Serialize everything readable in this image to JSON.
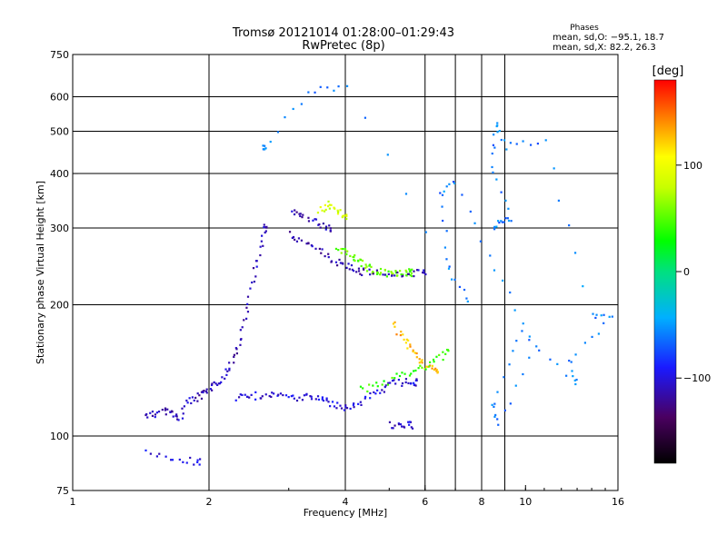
{
  "header": {
    "title": "Tromsø 20121014 01:28:00–01:29:43",
    "subtitle": "RwPretec (8p)",
    "stats_title": "Phases",
    "stats_o": "mean, sd,O: −95.1, 18.7",
    "stats_x": "mean, sd,X:  82.2, 26.3"
  },
  "colorbar": {
    "unit": "[deg]",
    "ticks": [
      {
        "value": 100,
        "label": "100"
      },
      {
        "value": 0,
        "label": "0"
      },
      {
        "value": -100,
        "label": "−100"
      }
    ],
    "range": [
      -180,
      180
    ]
  },
  "chart_data": {
    "type": "scatter",
    "title": "Tromsø 20121014 01:28:00–01:29:43",
    "subtitle": "RwPretec (8p)",
    "xlabel": "Frequency [MHz]",
    "ylabel": "Stationary phase Virtual Height [km]",
    "x_scale": "log",
    "y_scale": "log",
    "xlim": [
      1,
      16
    ],
    "ylim": [
      75,
      750
    ],
    "grid": true,
    "x_ticks": [
      {
        "value": 1,
        "label": "1"
      },
      {
        "value": 2,
        "label": "2"
      },
      {
        "value": 4,
        "label": "4"
      },
      {
        "value": 6,
        "label": "6"
      },
      {
        "value": 8,
        "label": "8"
      },
      {
        "value": 10,
        "label": "10"
      },
      {
        "value": 16,
        "label": "16"
      }
    ],
    "x_grid": [
      2,
      4,
      6,
      7,
      8,
      9
    ],
    "y_ticks": [
      {
        "value": 75,
        "label": "75"
      },
      {
        "value": 100,
        "label": "100"
      },
      {
        "value": 200,
        "label": "200"
      },
      {
        "value": 300,
        "label": "300"
      },
      {
        "value": 400,
        "label": "400"
      },
      {
        "value": 500,
        "label": "500"
      },
      {
        "value": 600,
        "label": "600"
      },
      {
        "value": 750,
        "label": "750"
      }
    ],
    "y_grid": [
      100,
      200,
      300,
      400,
      500,
      600
    ],
    "color_dimension": "phase [deg]",
    "traces": [
      {
        "desc": "E-region O trace",
        "phase": -110,
        "points": [
          [
            1.45,
            112
          ],
          [
            1.52,
            112
          ],
          [
            1.6,
            115
          ],
          [
            1.66,
            112
          ],
          [
            1.72,
            110
          ],
          [
            1.8,
            120
          ],
          [
            1.88,
            122
          ],
          [
            1.95,
            125
          ],
          [
            2.02,
            128
          ],
          [
            2.1,
            133
          ],
          [
            2.18,
            140
          ],
          [
            2.26,
            150
          ],
          [
            2.34,
            165
          ],
          [
            2.42,
            190
          ],
          [
            2.5,
            230
          ],
          [
            2.58,
            262
          ],
          [
            2.66,
            300
          ]
        ]
      },
      {
        "desc": "F-region O low trace",
        "phase": -100,
        "points": [
          [
            2.3,
            123
          ],
          [
            2.45,
            123
          ],
          [
            2.6,
            124
          ],
          [
            2.8,
            124
          ],
          [
            3.0,
            123
          ],
          [
            3.2,
            122
          ],
          [
            3.4,
            123
          ],
          [
            3.6,
            122
          ],
          [
            3.8,
            118
          ],
          [
            4.0,
            115
          ],
          [
            4.2,
            118
          ],
          [
            4.5,
            123
          ],
          [
            4.8,
            128
          ],
          [
            5.1,
            132
          ],
          [
            5.4,
            133
          ],
          [
            5.7,
            133
          ]
        ]
      },
      {
        "desc": "F2 O trace",
        "phase": -115,
        "points": [
          [
            3.0,
            290
          ],
          [
            3.15,
            283
          ],
          [
            3.3,
            275
          ],
          [
            3.45,
            268
          ],
          [
            3.6,
            260
          ],
          [
            3.75,
            253
          ],
          [
            3.9,
            248
          ],
          [
            4.05,
            245
          ],
          [
            4.2,
            242
          ],
          [
            4.35,
            238
          ]
        ]
      },
      {
        "desc": "F2 high O trace",
        "phase": -112,
        "points": [
          [
            3.05,
            325
          ],
          [
            3.15,
            323
          ],
          [
            3.25,
            318
          ],
          [
            3.4,
            310
          ],
          [
            3.55,
            305
          ],
          [
            3.7,
            300
          ]
        ]
      },
      {
        "desc": "F2 X trace",
        "phase": 55,
        "points": [
          [
            3.85,
            270
          ],
          [
            4.0,
            266
          ],
          [
            4.15,
            260
          ],
          [
            4.3,
            250
          ],
          [
            4.45,
            244
          ],
          [
            4.6,
            240
          ],
          [
            4.8,
            238
          ],
          [
            5.0,
            236
          ],
          [
            5.2,
            237
          ],
          [
            5.4,
            237
          ],
          [
            5.6,
            237
          ]
        ]
      },
      {
        "desc": "X high trace",
        "phase": 85,
        "points": [
          [
            3.5,
            330
          ],
          [
            3.6,
            335
          ],
          [
            3.7,
            340
          ],
          [
            3.8,
            330
          ],
          [
            3.9,
            325
          ],
          [
            4.0,
            320
          ]
        ]
      },
      {
        "desc": "Upper F2 O continuation",
        "phase": -112,
        "points": [
          [
            4.5,
            238
          ],
          [
            4.8,
            236
          ],
          [
            5.1,
            235
          ],
          [
            5.4,
            236
          ],
          [
            5.7,
            236
          ],
          [
            6.0,
            236
          ]
        ]
      },
      {
        "desc": "F1 X cluster",
        "phase": 130,
        "points": [
          [
            5.1,
            180
          ],
          [
            5.25,
            172
          ],
          [
            5.4,
            166
          ],
          [
            5.55,
            160
          ],
          [
            5.7,
            154
          ],
          [
            5.85,
            150
          ],
          [
            6.0,
            146
          ],
          [
            6.2,
            143
          ],
          [
            6.4,
            141
          ]
        ]
      },
      {
        "desc": "Lower X trace",
        "phase": 40,
        "points": [
          [
            4.3,
            128
          ],
          [
            4.6,
            130
          ],
          [
            4.9,
            132
          ],
          [
            5.2,
            137
          ],
          [
            5.5,
            140
          ],
          [
            5.8,
            142
          ],
          [
            6.1,
            146
          ],
          [
            6.4,
            150
          ],
          [
            6.7,
            155
          ]
        ]
      },
      {
        "desc": "Low O cluster",
        "phase": -105,
        "points": [
          [
            5.0,
            106
          ],
          [
            5.2,
            105
          ],
          [
            5.4,
            105
          ],
          [
            5.6,
            106
          ]
        ]
      },
      {
        "desc": "Sporadic low",
        "phase": -100,
        "points": [
          [
            1.45,
            93
          ],
          [
            1.6,
            90
          ],
          [
            1.75,
            88
          ],
          [
            1.9,
            87
          ]
        ]
      },
      {
        "desc": "High-frequency scatter",
        "phase": -60,
        "points": [
          [
            8.5,
            300
          ],
          [
            8.8,
            310
          ],
          [
            9.3,
            315
          ],
          [
            8.4,
            420
          ],
          [
            8.6,
            530
          ],
          [
            9.0,
            460
          ],
          [
            11.0,
            480
          ],
          [
            14.0,
            190
          ],
          [
            15.5,
            185
          ],
          [
            12.5,
            150
          ],
          [
            13.0,
            130
          ],
          [
            9.8,
            175
          ],
          [
            8.5,
            120
          ],
          [
            8.7,
            105
          ],
          [
            10.5,
            160
          ],
          [
            8.6,
            240
          ],
          [
            7.0,
            380
          ],
          [
            6.5,
            360
          ],
          [
            6.8,
            240
          ],
          [
            7.5,
            200
          ],
          [
            4.0,
            640
          ],
          [
            3.3,
            610
          ],
          [
            2.65,
            460
          ]
        ]
      }
    ]
  }
}
